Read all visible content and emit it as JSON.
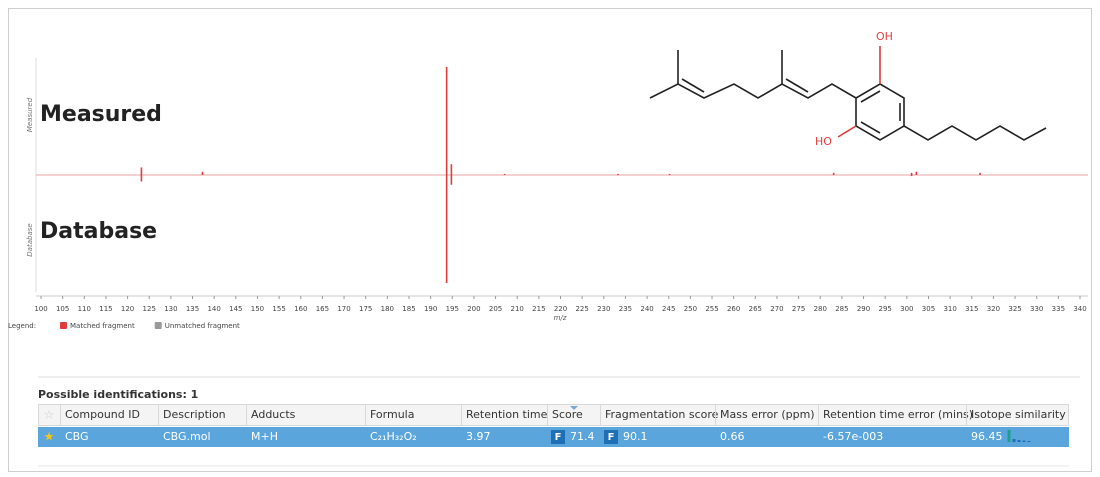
{
  "chart_data": {
    "type": "mirror",
    "xlabel": "m/z",
    "xlim": [
      100,
      340
    ],
    "ylim": [
      0,
      100
    ],
    "xticks": [
      100,
      105,
      110,
      115,
      120,
      125,
      130,
      135,
      140,
      145,
      150,
      155,
      160,
      165,
      170,
      175,
      180,
      185,
      190,
      195,
      200,
      205,
      210,
      215,
      220,
      225,
      230,
      235,
      240,
      245,
      250,
      255,
      260,
      265,
      270,
      275,
      280,
      285,
      290,
      295,
      300,
      305,
      310,
      315,
      320,
      325,
      330,
      335,
      340
    ],
    "series": [
      {
        "name": "Measured",
        "direction": "up",
        "color": "#e03c3c",
        "x": [
          123.2,
          137.3,
          193.7,
          194.8,
          207.1,
          233.3,
          245.2,
          283.1,
          301.1,
          302.2,
          316.9
        ],
        "values": [
          7,
          3,
          100,
          10,
          1,
          1,
          1,
          2,
          2,
          3,
          2
        ]
      },
      {
        "name": "Database",
        "direction": "down",
        "color": "#e03c3c",
        "x": [
          123.2,
          193.7,
          194.8,
          301.1
        ],
        "values": [
          6,
          100,
          9,
          1
        ]
      }
    ],
    "legend": {
      "label": "Legend:",
      "items": [
        {
          "name": "Matched fragment",
          "color": "#e03c3c"
        },
        {
          "name": "Unmatched fragment",
          "color": "#9a9a9a"
        }
      ]
    }
  },
  "structure": {
    "labels": [
      "OH",
      "HO"
    ]
  },
  "table": {
    "title": "Possible identifications: 1",
    "columns": [
      "Compound ID",
      "Description",
      "Adducts",
      "Formula",
      "Retention time",
      "Score",
      "Fragmentation score",
      "Mass error (ppm)",
      "Retention time error (mins)",
      "Isotope similarity"
    ],
    "rows": [
      [
        "CBG",
        "CBG.mol",
        "M+H",
        "C₂₁H₃₂O₂",
        "3.97",
        {
          "badge": "F",
          "value": "71.4"
        },
        {
          "badge": "F",
          "value": "90.1"
        },
        "0.66",
        "-6.57e-003",
        "96.45"
      ]
    ]
  }
}
